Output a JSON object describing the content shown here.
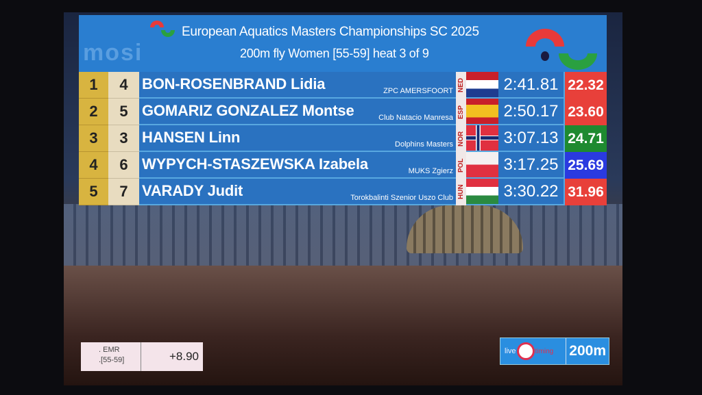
{
  "header": {
    "title": "European Aquatics Masters Championships SC 2025",
    "event": "200m fly Women [55-59] heat 3 of 9",
    "watermark": "mosi"
  },
  "results": [
    {
      "place": "1",
      "lane": "4",
      "name": "BON-ROSENBRAND Lidia",
      "club": "ZPC AMERSFOORT",
      "country": "NED",
      "time": "2:41.81",
      "split": "22.32",
      "split_color": "#e8403a"
    },
    {
      "place": "2",
      "lane": "5",
      "name": "GOMARIZ GONZALEZ Montse",
      "club": "Club Natacio Manresa",
      "country": "ESP",
      "time": "2:50.17",
      "split": "23.60",
      "split_color": "#e8403a"
    },
    {
      "place": "3",
      "lane": "3",
      "name": "HANSEN Linn",
      "club": "Dolphins Masters",
      "country": "NOR",
      "time": "3:07.13",
      "split": "24.71",
      "split_color": "#1e8a30"
    },
    {
      "place": "4",
      "lane": "6",
      "name": "WYPYCH-STASZEWSKA Izabela",
      "club": "MUKS Zgierz",
      "country": "POL",
      "time": "3:17.25",
      "split": "25.69",
      "split_color": "#2a3ae0"
    },
    {
      "place": "5",
      "lane": "7",
      "name": "VARADY Judit",
      "club": "Torokbalinti Szenior Uszo Club",
      "country": "HUN",
      "time": "3:30.22",
      "split": "31.96",
      "split_color": "#e8403a"
    }
  ],
  "record": {
    "label": ". EMR",
    "category": ".[55-59]",
    "diff": "+8.90"
  },
  "timing": {
    "live": "live",
    "timing": "timing",
    "distance": "200m"
  }
}
